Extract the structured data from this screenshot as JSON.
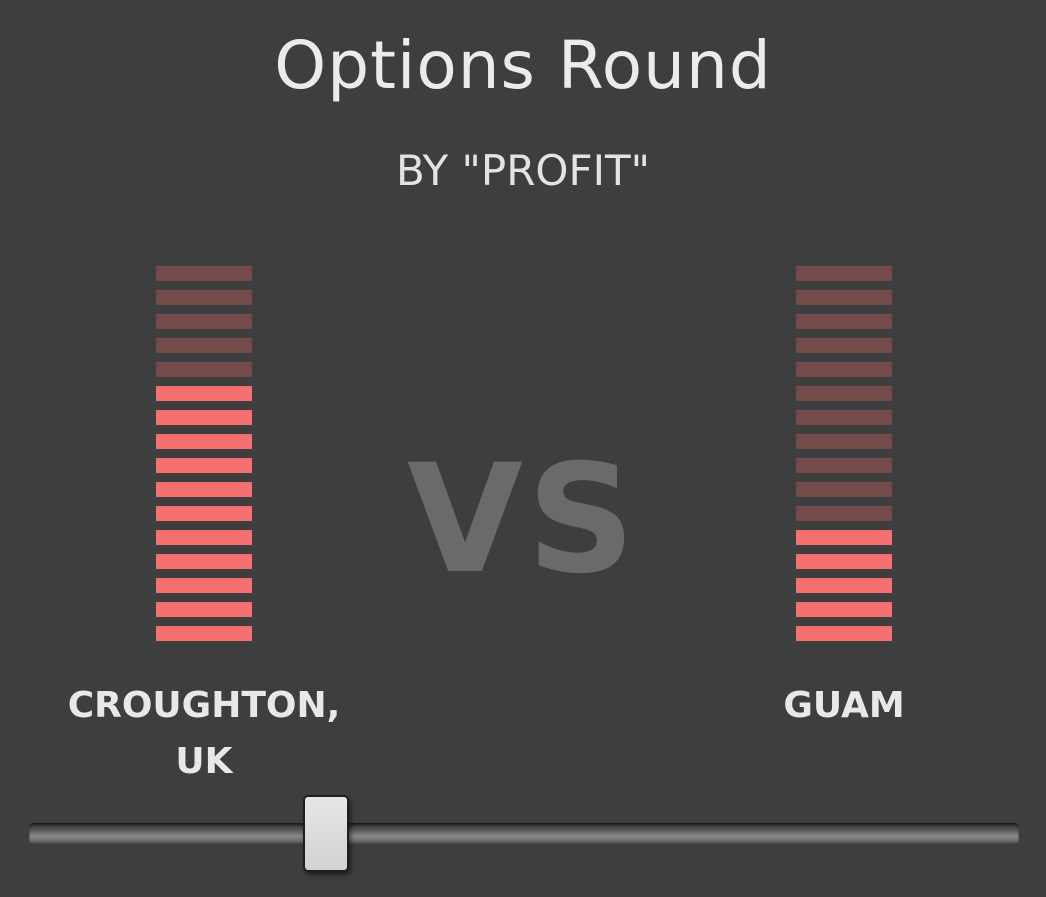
{
  "header": {
    "title": "Options Round",
    "subtitle": "BY \"PROFIT\""
  },
  "vs_label": "VS",
  "colors": {
    "background": "#3e3e3e",
    "bar_active": "#f47070",
    "bar_inactive": "#744b4b",
    "vs_text": "#6a6a6a"
  },
  "contestants": {
    "left": {
      "name": "CROUGHTON,\nUK",
      "level": 11,
      "max": 16
    },
    "right": {
      "name": "GUAM",
      "level": 5,
      "max": 16
    }
  },
  "slider": {
    "value": 0.3
  }
}
